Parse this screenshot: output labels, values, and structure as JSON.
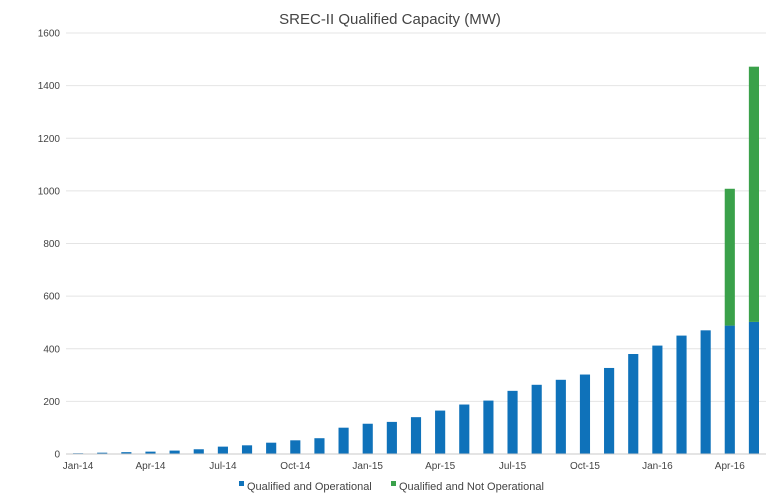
{
  "chart_data": {
    "type": "bar",
    "stacked": true,
    "title": "SREC-II Qualified Capacity (MW)",
    "xlabel": "",
    "ylabel": "",
    "ylim": [
      0,
      1600
    ],
    "yticks": [
      0,
      200,
      400,
      600,
      800,
      1000,
      1200,
      1400,
      1600
    ],
    "grid": true,
    "legend": "bottom",
    "categories": [
      "Jan-14",
      "Feb-14",
      "Mar-14",
      "Apr-14",
      "May-14",
      "Jun-14",
      "Jul-14",
      "Aug-14",
      "Sep-14",
      "Oct-14",
      "Nov-14",
      "Dec-14",
      "Jan-15",
      "Feb-15",
      "Mar-15",
      "Apr-15",
      "May-15",
      "Jun-15",
      "Jul-15",
      "Aug-15",
      "Sep-15",
      "Oct-15",
      "Nov-15",
      "Dec-15",
      "Jan-16",
      "Feb-16",
      "Mar-16",
      "Apr-16",
      "May-16"
    ],
    "xtick_labels": [
      "Jan-14",
      "Apr-14",
      "Jul-14",
      "Oct-14",
      "Jan-15",
      "Apr-15",
      "Jul-15",
      "Oct-15",
      "Jan-16",
      "Apr-16"
    ],
    "series": [
      {
        "name": "Qualified and Operational",
        "color": "#0f72ba",
        "values": [
          3,
          5,
          7,
          9,
          13,
          18,
          28,
          33,
          43,
          52,
          60,
          100,
          115,
          122,
          140,
          165,
          188,
          203,
          240,
          263,
          282,
          302,
          327,
          380,
          412,
          450,
          470,
          488,
          502
        ]
      },
      {
        "name": "Qualified and Not Operational",
        "color": "#3aa14a",
        "values": [
          0,
          0,
          0,
          0,
          0,
          0,
          0,
          0,
          0,
          0,
          0,
          0,
          0,
          0,
          0,
          0,
          0,
          0,
          0,
          0,
          0,
          0,
          0,
          0,
          0,
          0,
          0,
          520,
          970
        ]
      }
    ]
  }
}
